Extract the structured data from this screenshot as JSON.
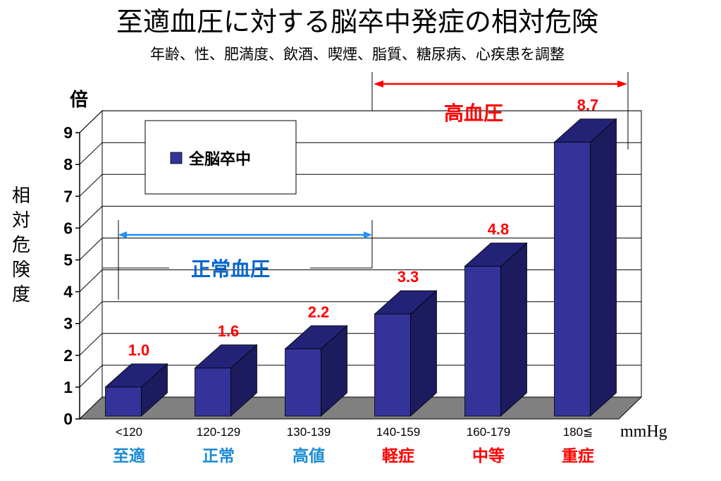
{
  "title": "至適血圧に対する脳卒中発症の相対危険",
  "subtitle": "年齢、性、肥満度、飲酒、喫煙、脂質、糖尿病、心疾患を調整",
  "y_unit_label": "倍",
  "y_axis_label": [
    "相",
    "対",
    "危",
    "険",
    "度"
  ],
  "x_unit": "mmHg",
  "legend_label": "全脳卒中",
  "region_normal": "正常血圧",
  "region_high": "高血圧",
  "severity_labels": [
    "至適",
    "正常",
    "高値",
    "軽症",
    "中等",
    "重症"
  ],
  "colors": {
    "bar_front": "#333399",
    "bar_top": "#222277",
    "bar_side": "#1b1b5e",
    "floor": "#808080",
    "gridline": "#000000",
    "data_label": "#ff0000",
    "normal_label": "#0066cc",
    "normal_arrow": "#1e90ff",
    "high_label": "#ff0000",
    "high_arrow": "#ff0000",
    "sev_normal": "#1a8ad4",
    "sev_high": "#ff0000"
  },
  "chart_data": {
    "type": "bar",
    "categories": [
      "<120",
      "120-129",
      "130-139",
      "140-159",
      "160-179",
      "180≦"
    ],
    "series": [
      {
        "name": "全脳卒中",
        "values": [
          1.0,
          1.6,
          2.2,
          3.3,
          4.8,
          8.7
        ]
      }
    ],
    "data_labels": [
      "1.0",
      "1.6",
      "2.2",
      "3.3",
      "4.8",
      "8.7"
    ],
    "ylim": [
      0,
      9
    ],
    "yticks": [
      0,
      1,
      2,
      3,
      4,
      5,
      6,
      7,
      8,
      9
    ],
    "grid": true,
    "legend_position": "top-left"
  }
}
